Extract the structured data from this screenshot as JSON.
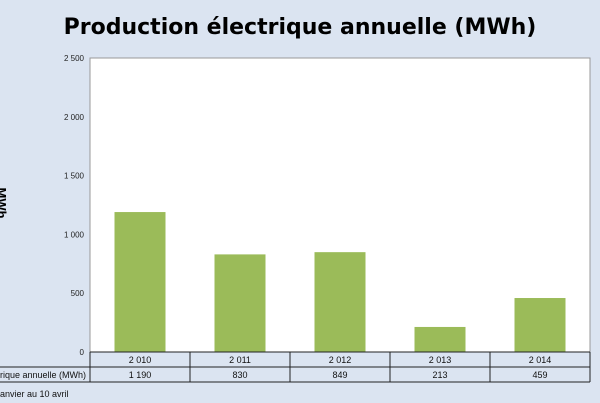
{
  "chart_data": {
    "type": "bar",
    "title": "Production électrique annuelle (MWh)",
    "ylabel": "MWh",
    "ylim": [
      0,
      2500
    ],
    "yticks": [
      0,
      500,
      1000,
      1500,
      2000,
      2500
    ],
    "ytick_labels": [
      "0",
      "500",
      "1 000",
      "1 500",
      "2 000",
      "2 500"
    ],
    "categories": [
      "2 010",
      "2 011",
      "2 012",
      "2 013",
      "2 014"
    ],
    "series": [
      {
        "name": "Production électrique annuelle (MWh)",
        "table_label": "ctrique annuelle (MWh)",
        "values": [
          1190,
          830,
          849,
          213,
          459
        ],
        "value_labels": [
          "1 190",
          "830",
          "849",
          "213",
          "459"
        ]
      }
    ],
    "footnote": "anvier au 10 avril",
    "grid": false,
    "legend": "none",
    "colors": {
      "bar": "#9bbb59",
      "background": "#dbe4f1",
      "plot": "#ffffff"
    }
  }
}
